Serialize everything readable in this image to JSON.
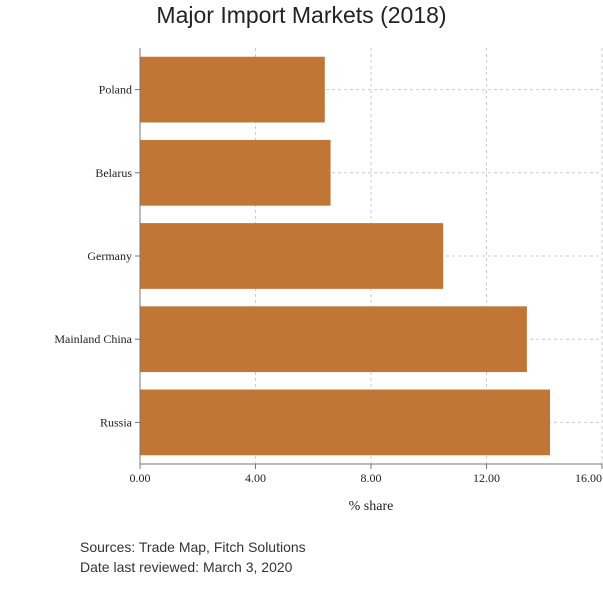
{
  "chart_data": {
    "type": "bar",
    "orientation": "horizontal",
    "title": "Major Import Markets (2018)",
    "xlabel": "% share",
    "ylabel": "",
    "categories": [
      "Poland",
      "Belarus",
      "Germany",
      "Mainland China",
      "Russia"
    ],
    "values": [
      6.4,
      6.6,
      10.5,
      13.4,
      14.2
    ],
    "xlim": [
      0,
      16
    ],
    "xticks": [
      0,
      4,
      8,
      12,
      16
    ],
    "xtick_labels": [
      "0.00",
      "4.00",
      "8.00",
      "12.00",
      "16.00"
    ],
    "grid": true,
    "bar_color": "#c27635"
  },
  "footer": {
    "sources": "Sources: Trade Map, Fitch Solutions",
    "reviewed": "Date last reviewed: March 3, 2020"
  }
}
